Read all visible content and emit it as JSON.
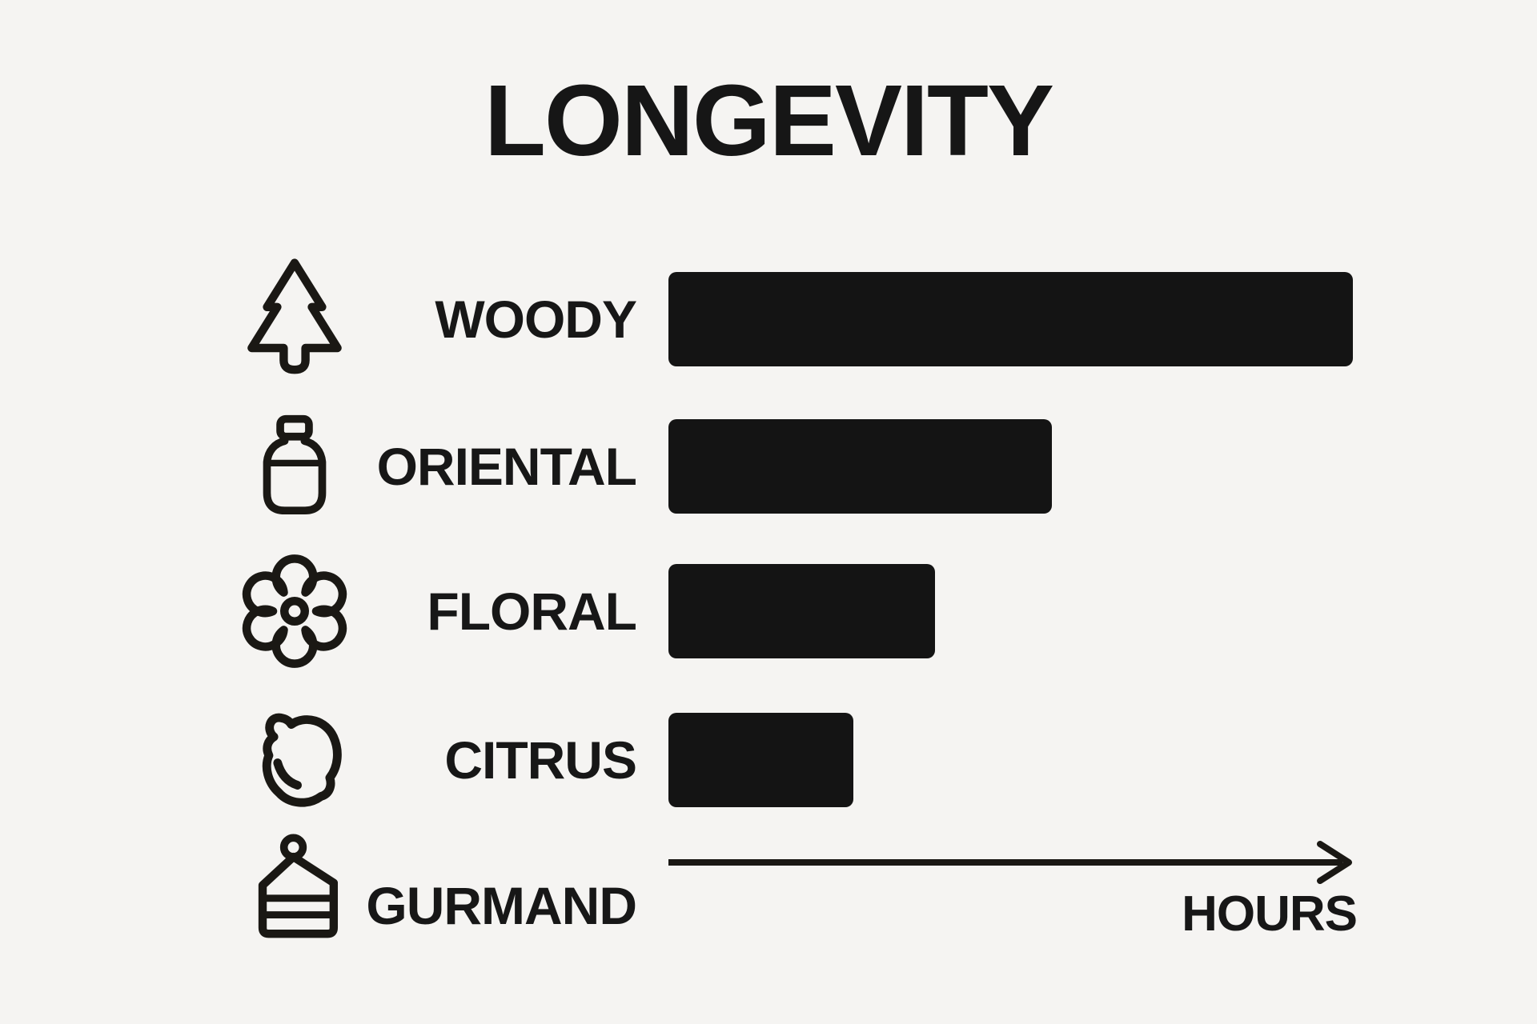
{
  "chart_data": {
    "type": "bar",
    "orientation": "horizontal",
    "title": "LONGEVITY",
    "categories": [
      "WOODY",
      "ORIENTAL",
      "FLORAL",
      "CITRUS",
      "GURMAND"
    ],
    "values_pct_of_max": [
      100,
      56,
      39,
      27,
      0
    ],
    "xlabel": "HOURS",
    "axis": {
      "numeric_ticks": false,
      "arrow": true
    },
    "legend_visible": false,
    "grid_visible": false,
    "bar_color": "#141414",
    "ink_color": "#1a1814",
    "background_color": "#f5f4f2",
    "icons": [
      "pine-tree",
      "perfume-jar",
      "flower",
      "lemon",
      "cake-slice"
    ]
  }
}
